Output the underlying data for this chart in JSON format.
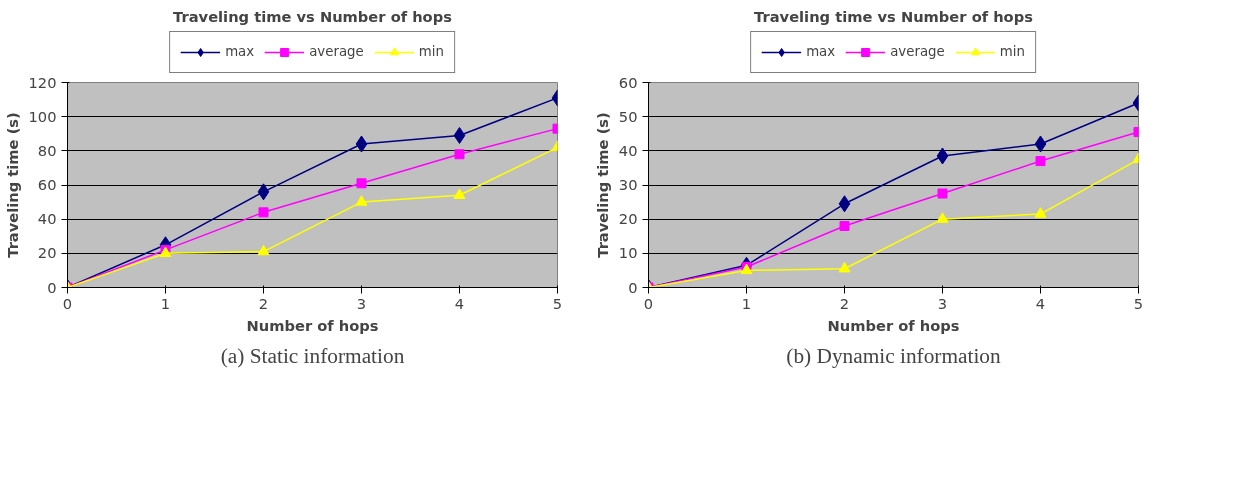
{
  "chart_data": [
    {
      "type": "line",
      "title": "Traveling time vs Number of hops",
      "xlabel": "Number of hops",
      "ylabel": "Traveling time (s)",
      "x": [
        0,
        1,
        2,
        3,
        4,
        5
      ],
      "xlim": [
        0,
        5
      ],
      "xticks": [
        0,
        1,
        2,
        3,
        4,
        5
      ],
      "ylim": [
        0,
        120
      ],
      "yticks": [
        0,
        20,
        40,
        60,
        80,
        100,
        120
      ],
      "grid": "y",
      "legend": "top",
      "annotations": [
        "(a) Static information"
      ],
      "series": [
        {
          "name": "max",
          "color": "#000080",
          "marker": "diamond",
          "values": [
            0,
            25,
            56,
            84,
            89,
            111
          ]
        },
        {
          "name": "average",
          "color": "#ff00ff",
          "marker": "square",
          "values": [
            0,
            22,
            44,
            61,
            78,
            93
          ]
        },
        {
          "name": "min",
          "color": "#ffff00",
          "marker": "triangle",
          "values": [
            0,
            20,
            21,
            50,
            54,
            82
          ]
        }
      ]
    },
    {
      "type": "line",
      "title": "Traveling time vs Number of hops",
      "xlabel": "Number of hops",
      "ylabel": "Traveling time (s)",
      "x": [
        0,
        1,
        2,
        3,
        4,
        5
      ],
      "xlim": [
        0,
        5
      ],
      "xticks": [
        0,
        1,
        2,
        3,
        4,
        5
      ],
      "ylim": [
        0,
        60
      ],
      "yticks": [
        0,
        10,
        20,
        30,
        40,
        50,
        60
      ],
      "grid": "y",
      "legend": "top",
      "annotations": [
        "(b) Dynamic information"
      ],
      "series": [
        {
          "name": "max",
          "color": "#000080",
          "marker": "diamond",
          "values": [
            0,
            6.5,
            24.5,
            38.5,
            42,
            54
          ]
        },
        {
          "name": "average",
          "color": "#ff00ff",
          "marker": "square",
          "values": [
            0,
            6,
            18,
            27.5,
            37,
            45.5
          ]
        },
        {
          "name": "min",
          "color": "#ffff00",
          "marker": "triangle",
          "values": [
            0,
            5,
            5.5,
            20,
            21.5,
            37.5
          ]
        }
      ]
    }
  ]
}
